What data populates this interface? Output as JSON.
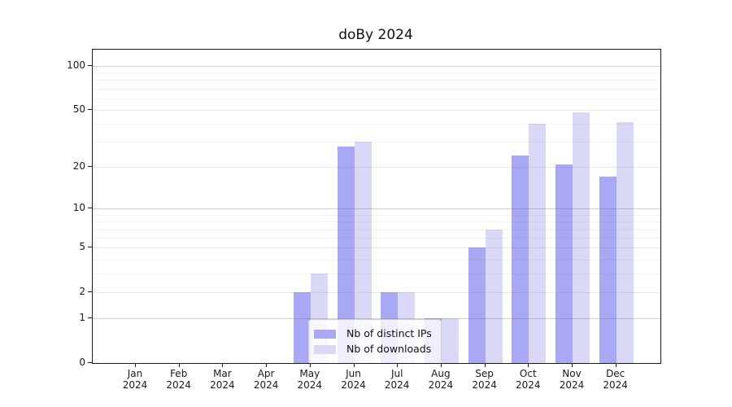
{
  "title": "doBy 2024",
  "chart_data": {
    "type": "bar",
    "title": "doBy 2024",
    "categories": [
      "Jan",
      "Feb",
      "Mar",
      "Apr",
      "May",
      "Jun",
      "Jul",
      "Aug",
      "Sep",
      "Oct",
      "Nov",
      "Dec"
    ],
    "year_label": "2024",
    "series": [
      {
        "name": "Nb of distinct IPs",
        "color": "#a8a8f5",
        "values": [
          0,
          0,
          0,
          0,
          2,
          28,
          2,
          1,
          5,
          24,
          21,
          17
        ]
      },
      {
        "name": "Nb of downloads",
        "color": "#d9d9f7",
        "values": [
          0,
          0,
          0,
          0,
          3,
          30,
          2,
          1,
          7,
          40,
          48,
          41
        ]
      }
    ],
    "y_scale": "log1p",
    "y_ticks": [
      0,
      1,
      2,
      5,
      10,
      20,
      50,
      100
    ],
    "y_decade_gridlines": [
      1,
      10,
      100
    ],
    "y_mid_gridlines": [
      2,
      5,
      20,
      50
    ],
    "y_minor_gridlines": [
      3,
      4,
      6,
      7,
      8,
      9,
      30,
      40,
      60,
      70,
      80,
      90
    ],
    "y_max": 129,
    "ylim": [
      0,
      129
    ],
    "grid": true,
    "legend_position": "lower center"
  }
}
